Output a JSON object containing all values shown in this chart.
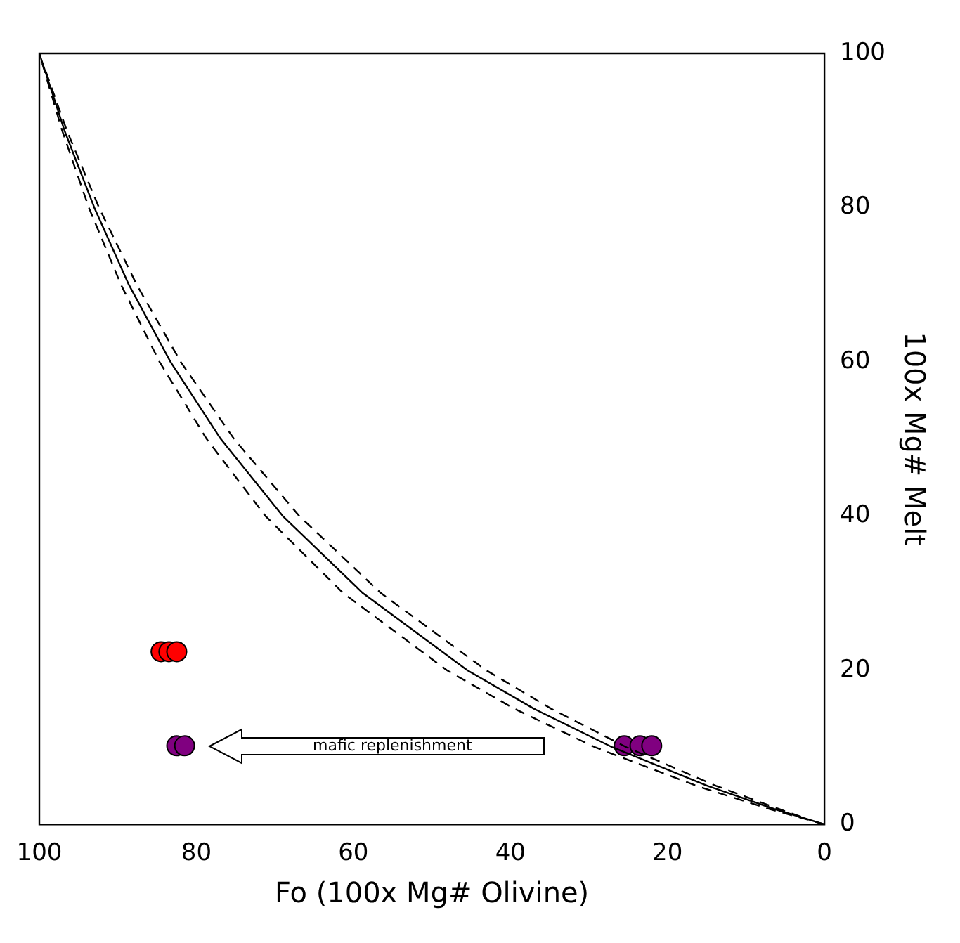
{
  "chart_data": {
    "type": "scatter",
    "xlabel": "Fo (100x Mg# Olivine)",
    "ylabel": "100x Mg# Melt",
    "xlim": [
      100,
      0
    ],
    "xticks": [
      100,
      80,
      60,
      40,
      20,
      0
    ],
    "ylim": [
      0,
      100
    ],
    "yticks": [
      0,
      20,
      40,
      60,
      80,
      100
    ],
    "grid": false,
    "legend": false,
    "annotations": [
      "mafic replenishment"
    ],
    "series": [
      {
        "type": "line",
        "color": "#000000",
        "line_style": "solid",
        "marker": "none",
        "x": [
          0,
          6.4,
          14.9,
          27.0,
          37.0,
          45.5,
          58.8,
          69.0,
          76.9,
          83.3,
          88.6,
          93.0,
          96.8,
          100
        ],
        "values": [
          0,
          2,
          5,
          10,
          15,
          20,
          30,
          40,
          50,
          60,
          70,
          80,
          90,
          100
        ]
      },
      {
        "type": "line",
        "color": "#000000",
        "line_style": "dashed",
        "marker": "none",
        "x": [
          0,
          7.0,
          16.3,
          29.2,
          39.5,
          48.1,
          61.3,
          71.2,
          78.7,
          84.7,
          89.6,
          93.7,
          97.1,
          100
        ],
        "values": [
          0,
          2,
          5,
          10,
          15,
          20,
          30,
          40,
          50,
          60,
          70,
          80,
          90,
          100
        ]
      },
      {
        "type": "line",
        "color": "#000000",
        "line_style": "dashed",
        "marker": "none",
        "x": [
          3.0,
          5.8,
          13.8,
          25.2,
          34.8,
          43.1,
          56.5,
          66.9,
          75.2,
          82.0,
          87.6,
          92.4,
          96.5,
          99.3
        ],
        "values": [
          1,
          2,
          5,
          10,
          15,
          20,
          30,
          40,
          50,
          60,
          70,
          80,
          90,
          98
        ]
      },
      {
        "type": "scatter",
        "color": "#ff0000",
        "marker": "circle",
        "x": [
          84.5,
          83.5,
          82.5
        ],
        "values": [
          22.4,
          22.4,
          22.4
        ]
      },
      {
        "type": "scatter",
        "color": "#800080",
        "marker": "circle",
        "x": [
          82.5,
          81.5
        ],
        "values": [
          10.2,
          10.2
        ]
      },
      {
        "type": "scatter",
        "color": "#800080",
        "marker": "circle",
        "x": [
          25.5,
          23.5,
          22
        ],
        "values": [
          10.2,
          10.2,
          10.2
        ]
      }
    ]
  }
}
